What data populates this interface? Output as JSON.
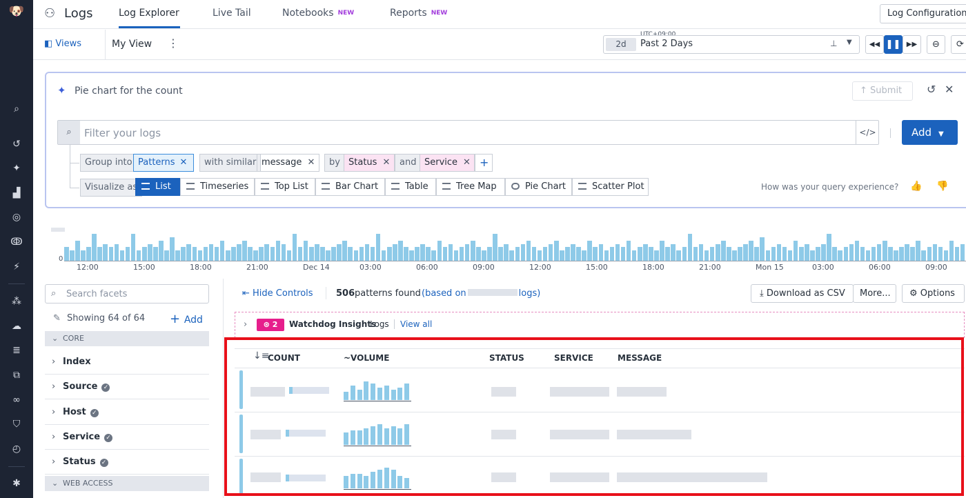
{
  "app": {
    "title": "Logs"
  },
  "nav": {
    "tabs": [
      {
        "label": "Log Explorer",
        "active": true
      },
      {
        "label": "Live Tail"
      },
      {
        "label": "Notebooks",
        "badge": "NEW"
      },
      {
        "label": "Reports",
        "badge": "NEW"
      }
    ],
    "log_config": "Log Configuration"
  },
  "views": {
    "label": "Views",
    "current": "My View"
  },
  "time": {
    "tz": "UTC+09:00",
    "short": "2d",
    "label": "Past 2 Days"
  },
  "query": {
    "prompt": "Pie chart for the count",
    "submit": "Submit",
    "filter_placeholder": "Filter your logs",
    "add_label": "Add",
    "group_into": "Group into",
    "group_value": "Patterns",
    "with_similar": "with similar",
    "similar_value": "message",
    "by": "by",
    "by_value1": "Status",
    "and": "and",
    "by_value2": "Service",
    "visualize_as": "Visualize as",
    "vis": [
      "List",
      "Timeseries",
      "Top List",
      "Bar Chart",
      "Table",
      "Tree Map",
      "Pie Chart",
      "Scatter Plot"
    ],
    "feedback": "How was your query experience?"
  },
  "histogram": {
    "y_label": "0",
    "x_ticks": [
      "12:00",
      "15:00",
      "18:00",
      "21:00",
      "Dec 14",
      "03:00",
      "06:00",
      "09:00",
      "12:00",
      "15:00",
      "18:00",
      "21:00",
      "Mon 15",
      "03:00",
      "06:00",
      "09:00"
    ],
    "values": [
      4,
      3,
      6,
      3,
      4,
      8,
      4,
      5,
      4,
      5,
      3,
      4,
      8,
      3,
      4,
      5,
      4,
      6,
      3,
      7,
      3,
      4,
      5,
      4,
      3,
      4,
      5,
      4,
      6,
      3,
      4,
      5,
      6,
      4,
      3,
      4,
      5,
      4,
      6,
      5,
      3,
      8,
      4,
      6,
      4,
      5,
      4,
      3,
      4,
      5,
      6,
      4,
      3,
      4,
      5,
      4,
      8,
      3,
      4,
      5,
      6,
      4,
      3,
      4,
      5,
      4,
      3,
      6,
      4,
      5,
      3,
      4,
      5,
      6,
      4,
      3,
      4,
      8,
      4,
      5,
      3,
      4,
      5,
      6,
      4,
      3,
      4,
      5,
      6,
      3,
      4,
      5,
      4,
      3,
      6,
      4,
      5,
      3,
      4,
      5,
      4,
      6,
      3,
      4,
      5,
      4,
      3,
      6,
      4,
      5,
      3,
      4,
      8,
      4,
      5,
      3,
      4,
      5,
      6,
      4,
      3,
      4,
      5,
      6,
      4,
      7,
      3,
      4,
      5,
      4,
      3,
      6,
      4,
      5,
      3,
      4,
      5,
      8,
      4,
      3,
      4,
      5,
      6,
      4,
      3,
      4,
      5,
      6,
      4,
      3,
      4,
      5,
      4,
      6,
      3,
      4,
      5,
      4,
      3,
      6,
      4,
      5
    ]
  },
  "facets": {
    "search_placeholder": "Search facets",
    "showing": "Showing 64 of 64",
    "add": "Add",
    "core_label": "CORE",
    "items": [
      "Index",
      "Source",
      "Host",
      "Service",
      "Status"
    ],
    "web_label": "WEB ACCESS"
  },
  "results": {
    "hide_controls": "Hide Controls",
    "count_num": "506",
    "count_text": "patterns found",
    "based_on": "(based on",
    "based_tail": "logs)",
    "download": "Download as CSV",
    "more": "More...",
    "options": "Options",
    "watchdog_count": "2",
    "watchdog": "Watchdog Insights",
    "watchdog_sub": "Logs",
    "view_all": "View all",
    "columns": [
      "COUNT",
      "~VOLUME",
      "STATUS",
      "SERVICE",
      "MESSAGE"
    ],
    "rows": [
      {
        "vol": [
          4,
          7,
          5,
          9,
          8,
          6,
          7,
          5,
          6,
          8
        ]
      },
      {
        "vol": [
          6,
          7,
          7,
          8,
          9,
          10,
          8,
          9,
          8,
          10
        ]
      },
      {
        "vol": [
          6,
          7,
          7,
          6,
          8,
          9,
          10,
          9,
          6,
          5
        ]
      }
    ]
  },
  "colors": {
    "accent": "#1b62bd",
    "bar": "#8ecae8",
    "highlight": "#e8101a",
    "rail": "#1d2433"
  }
}
